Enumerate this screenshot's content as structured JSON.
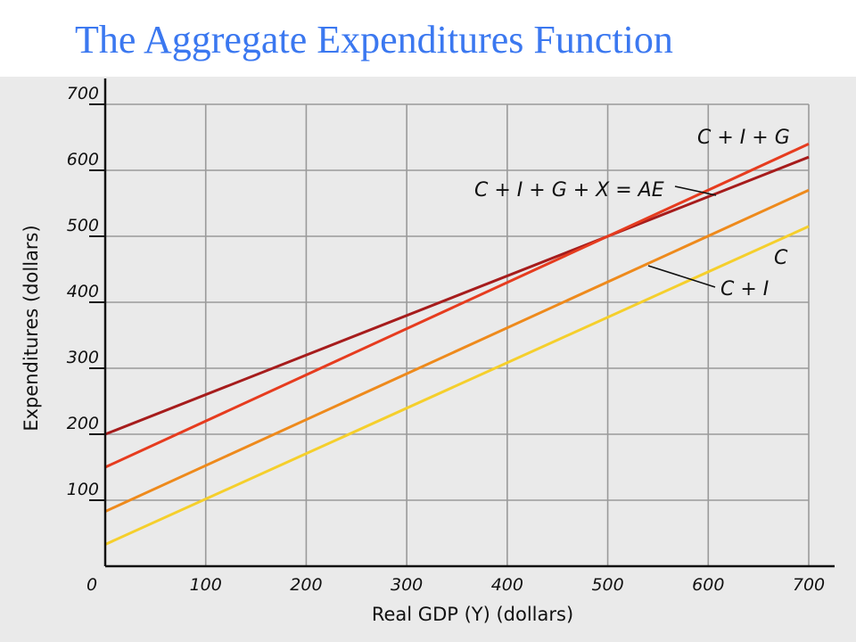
{
  "slide": {
    "title": "The Aggregate Expenditures Function"
  },
  "chart_data": {
    "type": "line",
    "xlabel": "Real GDP (Y) (dollars)",
    "ylabel": "Expenditures (dollars)",
    "xlim": [
      0,
      700
    ],
    "ylim": [
      0,
      700
    ],
    "origin_label": "0",
    "x_ticks": [
      100,
      200,
      300,
      400,
      500,
      600,
      700
    ],
    "y_ticks": [
      100,
      200,
      300,
      400,
      500,
      600,
      700
    ],
    "grid": true,
    "colors": {
      "grid": "#9a9a9a",
      "axis": "#111111",
      "panel": "#eaeaea"
    },
    "series": [
      {
        "label": "C + I + G + X = AE",
        "color": "#a61c1c",
        "points": [
          [
            0,
            200
          ],
          [
            700,
            620
          ]
        ]
      },
      {
        "label": "C + I + G",
        "color": "#e63c1f",
        "points": [
          [
            0,
            150
          ],
          [
            700,
            640
          ]
        ]
      },
      {
        "label": "C + I",
        "color": "#ee8a1c",
        "points": [
          [
            0,
            83
          ],
          [
            700,
            570
          ]
        ]
      },
      {
        "label": "C",
        "color": "#f5cf2c",
        "points": [
          [
            0,
            33
          ],
          [
            700,
            515
          ]
        ]
      }
    ]
  }
}
